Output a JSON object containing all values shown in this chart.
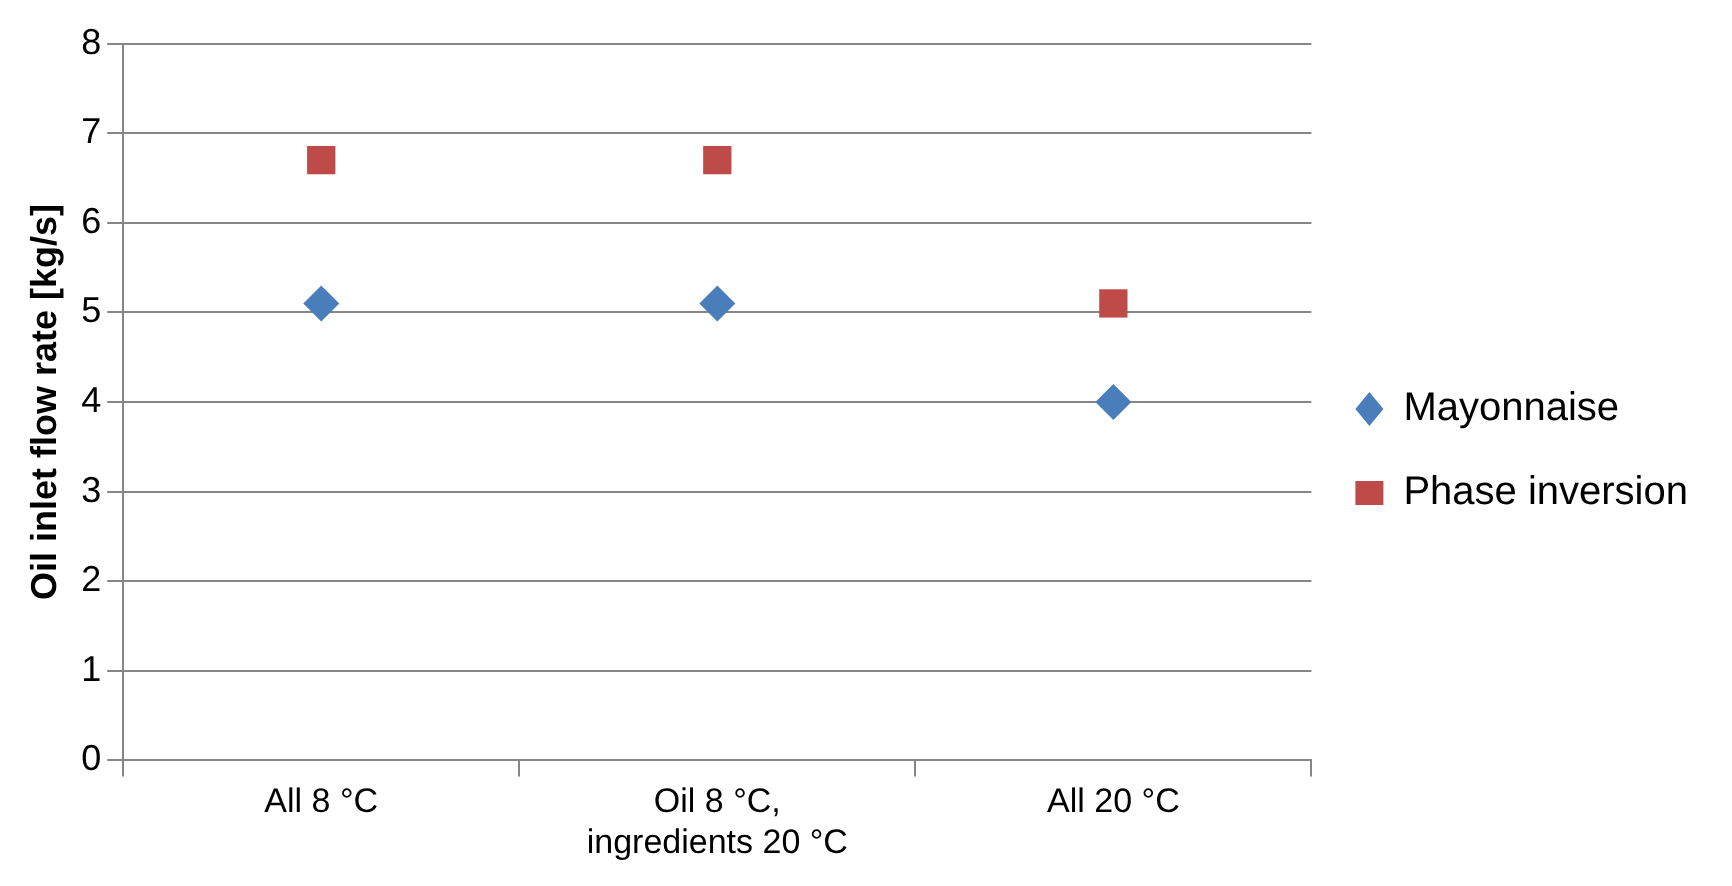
{
  "chart_data": {
    "type": "scatter",
    "ylabel": "Oil inlet flow rate [kg/s]",
    "categories": [
      "All 8 °C",
      "Oil 8 °C, ingredients 20 °C",
      "All 20 °C"
    ],
    "series": [
      {
        "name": "Mayonnaise",
        "color": "#4a7ebb",
        "marker": "diamond",
        "values": [
          5.1,
          5.1,
          4.0
        ]
      },
      {
        "name": "Phase inversion",
        "color": "#be4b48",
        "marker": "square",
        "values": [
          6.7,
          6.7,
          5.1
        ]
      }
    ],
    "ylim": [
      0,
      8
    ],
    "yticks": [
      0,
      1,
      2,
      3,
      4,
      5,
      6,
      7,
      8
    ],
    "grid": "y",
    "legend": "right"
  }
}
